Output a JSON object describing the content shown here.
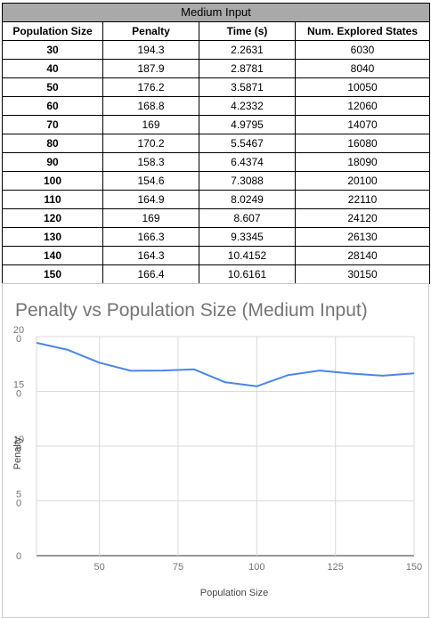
{
  "table": {
    "group_header": "Medium Input",
    "columns": [
      "Population Size",
      "Penalty",
      "Time (s)",
      "Num. Explored States"
    ],
    "rows": [
      [
        "30",
        "194.3",
        "2.2631",
        "6030"
      ],
      [
        "40",
        "187.9",
        "2.8781",
        "8040"
      ],
      [
        "50",
        "176.2",
        "3.5871",
        "10050"
      ],
      [
        "60",
        "168.8",
        "4.2332",
        "12060"
      ],
      [
        "70",
        "169",
        "4.9795",
        "14070"
      ],
      [
        "80",
        "170.2",
        "5.5467",
        "16080"
      ],
      [
        "90",
        "158.3",
        "6.4374",
        "18090"
      ],
      [
        "100",
        "154.6",
        "7.3088",
        "20100"
      ],
      [
        "110",
        "164.9",
        "8.0249",
        "22110"
      ],
      [
        "120",
        "169",
        "8.607",
        "24120"
      ],
      [
        "130",
        "166.3",
        "9.3345",
        "26130"
      ],
      [
        "140",
        "164.3",
        "10.4152",
        "28140"
      ],
      [
        "150",
        "166.4",
        "10.6161",
        "30150"
      ]
    ]
  },
  "chart_data": {
    "type": "line",
    "title": "Penalty vs Population Size (Medium Input)",
    "xlabel": "Population Size",
    "ylabel": "Penalty",
    "x": [
      30,
      40,
      50,
      60,
      70,
      80,
      90,
      100,
      110,
      120,
      130,
      140,
      150
    ],
    "series": [
      {
        "values": [
          194.3,
          187.9,
          176.2,
          168.8,
          169,
          170.2,
          158.3,
          154.6,
          164.9,
          169,
          166.3,
          164.3,
          166.4
        ]
      }
    ],
    "xlim": [
      30,
      150
    ],
    "ylim": [
      0,
      200
    ],
    "x_ticks": [
      50,
      75,
      100,
      125,
      150
    ],
    "y_ticks": [
      0,
      50,
      100,
      150,
      200
    ],
    "x_tick_labels": [
      "50",
      "75",
      "100",
      "125",
      "150"
    ],
    "y_tick_labels": [
      [
        "0",
        ""
      ],
      [
        "5",
        "0"
      ],
      [
        "10",
        "0"
      ],
      [
        "15",
        "0"
      ],
      [
        "20",
        "0"
      ]
    ],
    "grid": true,
    "line_color": "#4a86e8",
    "grid_color": "#d9d9d9"
  }
}
